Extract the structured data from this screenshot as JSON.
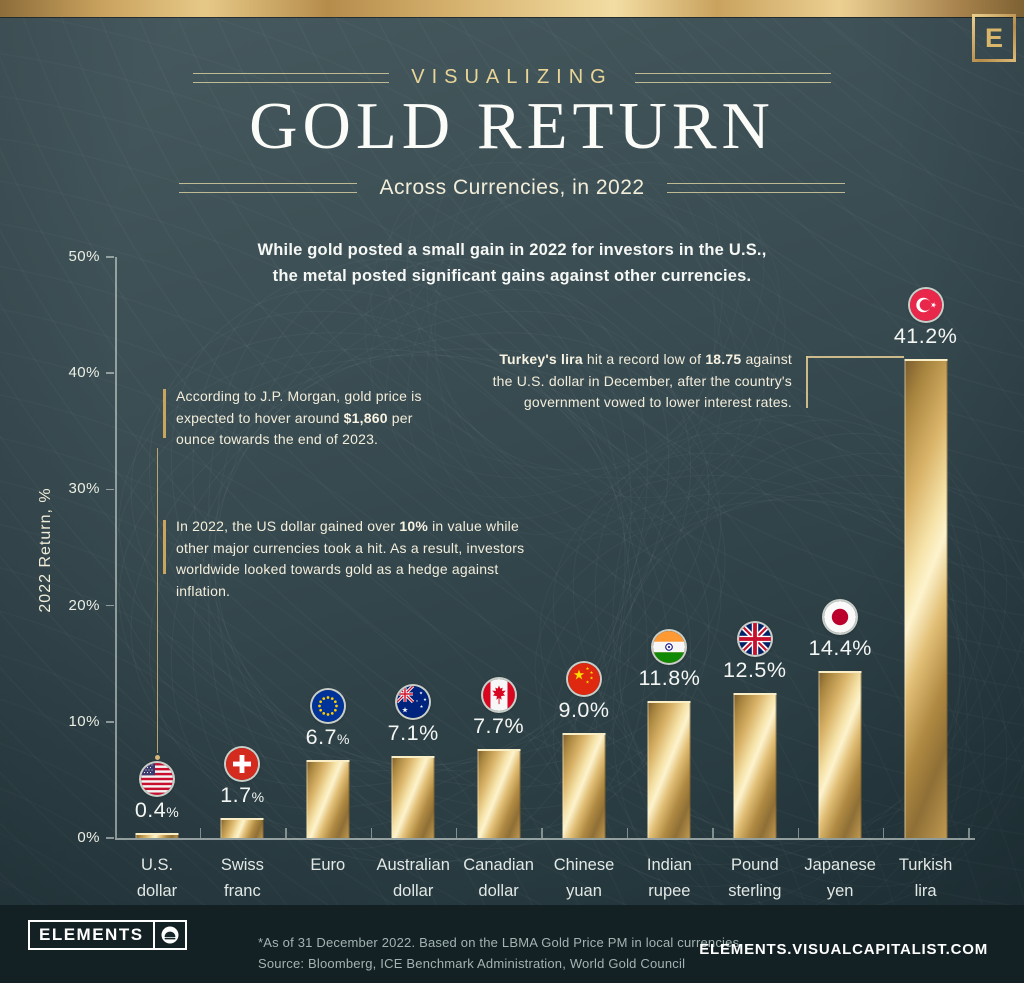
{
  "colors": {
    "background": "#36494f",
    "footer_background": "#132125",
    "gold_accent": "#d4af6e",
    "bar_gold": "#e6c47f",
    "cream_text": "#f3edda",
    "white_text": "#f6f8f5"
  },
  "header": {
    "logo_letter": "E",
    "kicker": "VISUALIZING",
    "title": "GOLD RETURN",
    "subtitle": "Across Currencies, in 2022"
  },
  "intro": {
    "line1": "While gold posted a small gain in 2022 for investors in the U.S.,",
    "line2": "the metal posted significant gains against other currencies."
  },
  "chart_data": {
    "type": "bar",
    "title": "Gold Return Across Currencies, in 2022",
    "xlabel": "",
    "ylabel": "2022 Return, %",
    "ylim": [
      0,
      50
    ],
    "yticks": [
      "0%",
      "10%",
      "20%",
      "30%",
      "40%",
      "50%"
    ],
    "grid": false,
    "legend": false,
    "bar_style": "metallic-gold",
    "categories": [
      "U.S. dollar",
      "Swiss franc",
      "Euro",
      "Australian dollar",
      "Canadian dollar",
      "Chinese yuan",
      "Indian rupee",
      "Pound sterling",
      "Japanese yen",
      "Turkish lira"
    ],
    "values": [
      0.4,
      1.7,
      6.7,
      7.1,
      7.7,
      9.0,
      11.8,
      12.5,
      14.4,
      41.2
    ],
    "items": [
      {
        "slug": "us-dollar",
        "label_lines": [
          "U.S.",
          "dollar"
        ],
        "value": 0.4,
        "display": "0.4",
        "small_pct": true,
        "flag": "us"
      },
      {
        "slug": "swiss-franc",
        "label_lines": [
          "Swiss",
          "franc"
        ],
        "value": 1.7,
        "display": "1.7",
        "small_pct": true,
        "flag": "switzerland"
      },
      {
        "slug": "euro",
        "label_lines": [
          "Euro"
        ],
        "value": 6.7,
        "display": "6.7",
        "small_pct": true,
        "flag": "eu"
      },
      {
        "slug": "australian-dollar",
        "label_lines": [
          "Australian",
          "dollar"
        ],
        "value": 7.1,
        "display": "7.1",
        "small_pct": false,
        "flag": "australia"
      },
      {
        "slug": "canadian-dollar",
        "label_lines": [
          "Canadian",
          "dollar"
        ],
        "value": 7.7,
        "display": "7.7",
        "small_pct": false,
        "flag": "canada"
      },
      {
        "slug": "chinese-yuan",
        "label_lines": [
          "Chinese",
          "yuan"
        ],
        "value": 9.0,
        "display": "9.0",
        "small_pct": false,
        "flag": "china"
      },
      {
        "slug": "indian-rupee",
        "label_lines": [
          "Indian",
          "rupee"
        ],
        "value": 11.8,
        "display": "11.8",
        "small_pct": false,
        "flag": "india"
      },
      {
        "slug": "pound-sterling",
        "label_lines": [
          "Pound",
          "sterling"
        ],
        "value": 12.5,
        "display": "12.5",
        "small_pct": false,
        "flag": "uk"
      },
      {
        "slug": "japanese-yen",
        "label_lines": [
          "Japanese",
          "yen"
        ],
        "value": 14.4,
        "display": "14.4",
        "small_pct": false,
        "flag": "japan"
      },
      {
        "slug": "turkish-lira",
        "label_lines": [
          "Turkish",
          "lira"
        ],
        "value": 41.2,
        "display": "41.2",
        "small_pct": false,
        "flag": "turkey"
      }
    ]
  },
  "annotations": {
    "jp_morgan": {
      "segments": [
        {
          "t": "According to J.P. Morgan, gold price is"
        },
        {
          "br": true
        },
        {
          "t": "expected to hover around "
        },
        {
          "t": "$1,860",
          "b": true
        },
        {
          "t": " per"
        },
        {
          "br": true
        },
        {
          "t": "ounce towards the end of 2023."
        }
      ]
    },
    "us_note": {
      "segments": [
        {
          "t": "In 2022, the US dollar gained over "
        },
        {
          "t": "10%",
          "b": true
        },
        {
          "t": " in value while"
        },
        {
          "br": true
        },
        {
          "t": "other major currencies took a hit. As a result, investors"
        },
        {
          "br": true
        },
        {
          "t": "worldwide looked towards gold as a hedge against inflation."
        }
      ]
    },
    "turkey": {
      "segments": [
        {
          "t": "Turkey's lira",
          "b": true
        },
        {
          "t": " hit a record low of "
        },
        {
          "t": "18.75",
          "b": true
        },
        {
          "t": " against"
        },
        {
          "br": true
        },
        {
          "t": "the U.S. dollar in December, after the country's"
        },
        {
          "br": true
        },
        {
          "t": "government vowed to lower interest rates."
        }
      ]
    }
  },
  "footer": {
    "brand": "ELEMENTS",
    "note_line1": "*As of 31 December 2022. Based on the LBMA Gold Price PM in local currencies.",
    "note_line2": "Source: Bloomberg, ICE Benchmark Administration, World Gold Council",
    "url": "ELEMENTS.VISUALCAPITALIST.COM"
  }
}
